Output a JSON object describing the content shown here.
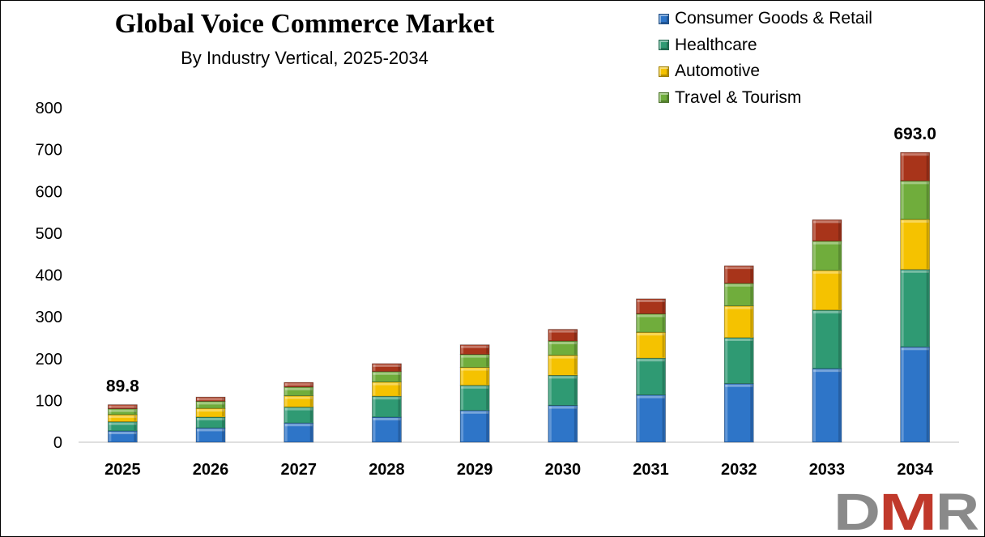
{
  "chart_data": {
    "type": "bar",
    "stacked": true,
    "title": "Global Voice Commerce Market",
    "subtitle": "By Industry Vertical, 2025-2034",
    "categories": [
      "2025",
      "2026",
      "2027",
      "2028",
      "2029",
      "2030",
      "2031",
      "2032",
      "2033",
      "2034"
    ],
    "series": [
      {
        "name": "Consumer Goods & Retail",
        "color": "#2E75C8",
        "values": [
          27,
          34,
          46,
          60,
          76,
          88,
          113,
          140,
          176,
          228
        ]
      },
      {
        "name": "Healthcare",
        "color": "#2F9A73",
        "values": [
          22,
          26,
          38,
          50,
          60,
          72,
          88,
          110,
          140,
          185
        ]
      },
      {
        "name": "Automotive",
        "color": "#F5C200",
        "values": [
          17,
          21,
          27,
          34,
          43,
          48,
          62,
          76,
          95,
          120
        ]
      },
      {
        "name": "Travel & Tourism",
        "color": "#70AD3C",
        "values": [
          14,
          17,
          21,
          25,
          31,
          34,
          44,
          54,
          70,
          92
        ]
      },
      {
        "name": "",
        "color": "#A8341A",
        "values": [
          9.8,
          10,
          11,
          19,
          23,
          28,
          36,
          42,
          51,
          68
        ]
      }
    ],
    "data_labels": [
      {
        "category": "2025",
        "text": "89.8"
      },
      {
        "category": "2034",
        "text": "693.0"
      }
    ],
    "ylim": [
      0,
      800
    ],
    "yticks": [
      0,
      100,
      200,
      300,
      400,
      500,
      600,
      700,
      800
    ],
    "xlabel": "",
    "ylabel": "",
    "grid": false,
    "legend_position": "top-right"
  },
  "logo": {
    "text": "DMR",
    "colors": [
      "#8A8A8A",
      "#C0392B"
    ]
  }
}
